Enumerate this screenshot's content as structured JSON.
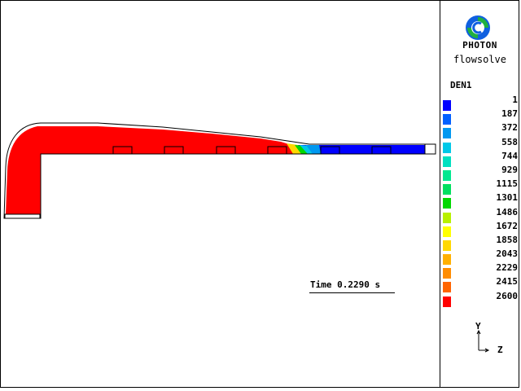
{
  "brand": {
    "name": "PHOTON",
    "subtitle": "flowsolve"
  },
  "legend": {
    "title": "DEN1",
    "entries": [
      {
        "label": "1",
        "color": "#0000ff"
      },
      {
        "label": "187",
        "color": "#0060ff"
      },
      {
        "label": "372",
        "color": "#0098f0"
      },
      {
        "label": "558",
        "color": "#00c8e8"
      },
      {
        "label": "744",
        "color": "#00e0c0"
      },
      {
        "label": "929",
        "color": "#00e890"
      },
      {
        "label": "1115",
        "color": "#00e060"
      },
      {
        "label": "1301",
        "color": "#00d800"
      },
      {
        "label": "1486",
        "color": "#b8f000"
      },
      {
        "label": "1672",
        "color": "#ffff00"
      },
      {
        "label": "1858",
        "color": "#ffd800"
      },
      {
        "label": "2043",
        "color": "#ffb000"
      },
      {
        "label": "2229",
        "color": "#ff8c00"
      },
      {
        "label": "2415",
        "color": "#ff6400"
      },
      {
        "label": "2600",
        "color": "#ff0000"
      }
    ]
  },
  "time": {
    "text": "Time 0.2290 s"
  },
  "axes": {
    "y_label": "Y",
    "z_label": "Z"
  },
  "colors": {
    "liquid": "#ff0000",
    "gas": "#0000ff",
    "wall": "#000000"
  }
}
